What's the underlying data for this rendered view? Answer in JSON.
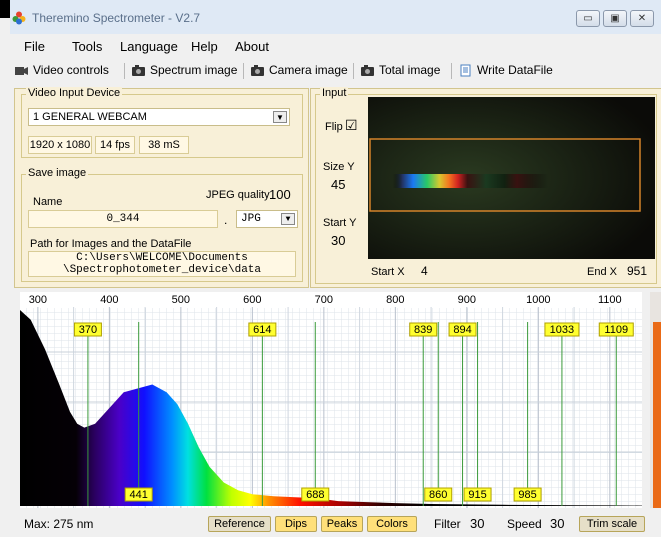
{
  "window": {
    "title": "Theremino Spectrometer - V2.7",
    "minimize_glyph": "▭",
    "maximize_glyph": "▣",
    "close_glyph": "✕"
  },
  "menu": [
    "File",
    "Tools",
    "Language",
    "Help",
    "About"
  ],
  "toolbar": {
    "video_controls": "Video controls",
    "spectrum_image": "Spectrum image",
    "camera_image": "Camera image",
    "total_image": "Total image",
    "write_datafile": "Write DataFile"
  },
  "video_input": {
    "group_label": "Video Input Device",
    "device": "1 GENERAL WEBCAM",
    "resolution": "1920 x 1080",
    "fps": "14 fps",
    "latency": "38 mS"
  },
  "save_image": {
    "group_label": "Save image",
    "name_label": "Name",
    "jpeg_quality_label": "JPEG quality",
    "jpeg_quality": "100",
    "name_value": "0_344",
    "dot": ".",
    "format": "JPG",
    "path_label": "Path for Images and the DataFile",
    "path_line1": "C:\\Users\\WELCOME\\Documents",
    "path_line2": "\\Spectrophotometer_device\\data"
  },
  "input": {
    "group_label": "Input",
    "flip_label": "Flip",
    "flip_checked": true,
    "flip_mark": "☑",
    "size_y_label": "Size Y",
    "size_y": "45",
    "start_y_label": "Start Y",
    "start_y": "30",
    "start_x_label": "Start X",
    "start_x": "4",
    "end_x_label": "End X",
    "end_x": "951"
  },
  "chart_data": {
    "type": "area",
    "x_ticks": [
      "300",
      "400",
      "500",
      "600",
      "700",
      "800",
      "900",
      "1000",
      "1100"
    ],
    "xlim": [
      275,
      1145
    ],
    "ylim": [
      0,
      100
    ],
    "peaks_top": [
      "370",
      "614",
      "839",
      "894",
      "1033",
      "1109"
    ],
    "peaks_bottom": [
      "441",
      "688",
      "860",
      "915",
      "985"
    ],
    "series_x": [
      275,
      290,
      310,
      330,
      345,
      355,
      365,
      380,
      400,
      420,
      440,
      460,
      480,
      495,
      510,
      525,
      540,
      560,
      580,
      600,
      630,
      660,
      690,
      720,
      760,
      800,
      850,
      900,
      950,
      1000,
      1050,
      1100,
      1145
    ],
    "series_y": [
      100,
      95,
      80,
      62,
      48,
      42,
      40,
      42,
      50,
      58,
      60,
      62,
      58,
      52,
      42,
      30,
      20,
      12,
      8,
      6,
      5,
      4.5,
      4,
      2.5,
      2,
      1.5,
      1,
      0.8,
      0.6,
      0.5,
      0.4,
      0.3,
      0.2
    ]
  },
  "status": {
    "max": "Max: 275 nm",
    "reference": "Reference",
    "dips": "Dips",
    "peaks": "Peaks",
    "colors": "Colors",
    "filter_label": "Filter",
    "filter": "30",
    "speed_label": "Speed",
    "speed": "30",
    "trim": "Trim scale"
  }
}
